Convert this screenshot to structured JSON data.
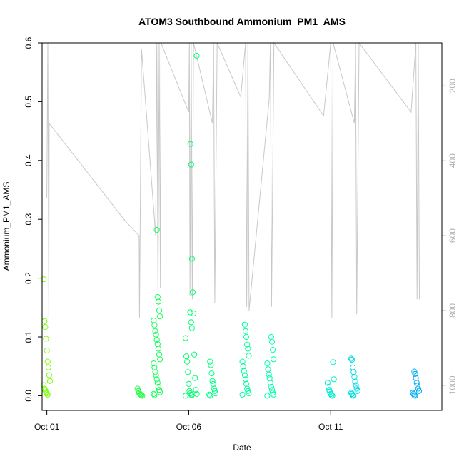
{
  "chart_data": {
    "type": "scatter",
    "title": "ATOM3 Southbound Ammonium_PM1_AMS",
    "xlabel": "Date",
    "ylabel": "Ammonium_PM1_AMS",
    "x_domain": [
      "2017-09-30T20:00",
      "2017-10-14T22:00"
    ],
    "ylim": [
      -0.025,
      0.6
    ],
    "y_ticks": [
      0.0,
      0.1,
      0.2,
      0.3,
      0.4,
      0.5,
      0.6
    ],
    "x_ticks": [
      {
        "date": "2017-10-01T00:00",
        "label": "Oct 01"
      },
      {
        "date": "2017-10-06T00:00",
        "label": "Oct 06"
      },
      {
        "date": "2017-10-11T00:00",
        "label": "Oct 11"
      }
    ],
    "right_axis": {
      "color": "#b3b3b3",
      "reversed": true,
      "range": [
        85,
        1067
      ],
      "ticks": [
        200,
        400,
        600,
        800,
        1000
      ]
    },
    "grid": false,
    "legend": "none",
    "point_color_gradient": [
      "#7fff00",
      "#00ff66",
      "#00ffcc",
      "#0096ff"
    ],
    "series": [
      {
        "role": "ammonium points",
        "groups": [
          {
            "date": "2017-10-01T00:00",
            "values": [
              0.198,
              0.127,
              0.117,
              0.097,
              0.077,
              0.058,
              0.048,
              0.035,
              0.025,
              0.018,
              0.012,
              0.009,
              0.006,
              0.004,
              0.002
            ]
          },
          {
            "date": "2017-10-04T06:00",
            "values": [
              0.012,
              0.008,
              0.005,
              0.003,
              0.002,
              0.001,
              0.0
            ]
          },
          {
            "date": "2017-10-04T21:00",
            "values": [
              0.282,
              0.168,
              0.16,
              0.145,
              0.135,
              0.128,
              0.12,
              0.11,
              0.104,
              0.095,
              0.088,
              0.08,
              0.07,
              0.062,
              0.055,
              0.048,
              0.04,
              0.035,
              0.028,
              0.022,
              0.015,
              0.01,
              0.006,
              0.003,
              0.001
            ]
          },
          {
            "date": "2017-10-06T00:00",
            "values": [
              0.142,
              0.125,
              0.115,
              0.098,
              0.067,
              0.058,
              0.04,
              0.02,
              0.008,
              0.004,
              0.002,
              0.001,
              0.0
            ]
          },
          {
            "date": "2017-10-06T04:00",
            "values": [
              0.578,
              0.428,
              0.393,
              0.233,
              0.176,
              0.14,
              0.07,
              0.03,
              0.01,
              0.003
            ]
          },
          {
            "date": "2017-10-06T20:00",
            "values": [
              0.058,
              0.052,
              0.038,
              0.025,
              0.02,
              0.012,
              0.008,
              0.004,
              0.002,
              0.0
            ]
          },
          {
            "date": "2017-10-08T00:00",
            "values": [
              0.121,
              0.11,
              0.1,
              0.087,
              0.08,
              0.068,
              0.058,
              0.05,
              0.042,
              0.035,
              0.028,
              0.02,
              0.012,
              0.008,
              0.004,
              0.002
            ]
          },
          {
            "date": "2017-10-08T21:00",
            "values": [
              0.1,
              0.092,
              0.078,
              0.062,
              0.055,
              0.045,
              0.036,
              0.03,
              0.022,
              0.015,
              0.01,
              0.005,
              0.002,
              0.0
            ]
          },
          {
            "date": "2017-10-11T00:00",
            "values": [
              0.057,
              0.028,
              0.022,
              0.015,
              0.01,
              0.006,
              0.003,
              0.001,
              0.0
            ]
          },
          {
            "date": "2017-10-11T20:00",
            "values": [
              0.063,
              0.061,
              0.048,
              0.04,
              0.032,
              0.024,
              0.018,
              0.012,
              0.008,
              0.005,
              0.003,
              0.001,
              0.0
            ]
          },
          {
            "date": "2017-10-14T00:00",
            "values": [
              0.041,
              0.037,
              0.03,
              0.022,
              0.017,
              0.012,
              0.008,
              0.005,
              0.003,
              0.001,
              0.0
            ]
          }
        ]
      },
      {
        "role": "altitude profile (right axis)",
        "color": "#c8c8c8",
        "points": [
          [
            "2017-10-01T00:00",
            500
          ],
          [
            "2017-10-01T00:50",
            85
          ],
          [
            "2017-10-01T01:40",
            820
          ],
          [
            "2017-10-01T02:00",
            300
          ],
          [
            "2017-10-03T18:00",
            560
          ],
          [
            "2017-10-04T06:00",
            600
          ],
          [
            "2017-10-04T06:20",
            820
          ],
          [
            "2017-10-04T07:00",
            540
          ],
          [
            "2017-10-04T08:00",
            100
          ],
          [
            "2017-10-04T20:00",
            600
          ],
          [
            "2017-10-04T21:00",
            85
          ],
          [
            "2017-10-04T22:00",
            770
          ],
          [
            "2017-10-04T23:00",
            85
          ],
          [
            "2017-10-05T00:00",
            740
          ],
          [
            "2017-10-05T00:30",
            85
          ],
          [
            "2017-10-06T00:00",
            270
          ],
          [
            "2017-10-06T00:30",
            85
          ],
          [
            "2017-10-06T01:00",
            760
          ],
          [
            "2017-10-06T02:00",
            85
          ],
          [
            "2017-10-06T03:00",
            770
          ],
          [
            "2017-10-06T04:00",
            85
          ],
          [
            "2017-10-06T20:00",
            300
          ],
          [
            "2017-10-06T21:00",
            85
          ],
          [
            "2017-10-06T22:00",
            780
          ],
          [
            "2017-10-07T00:00",
            85
          ],
          [
            "2017-10-07T20:00",
            230
          ],
          [
            "2017-10-08T00:00",
            85
          ],
          [
            "2017-10-08T01:00",
            790
          ],
          [
            "2017-10-08T02:00",
            85
          ],
          [
            "2017-10-08T03:00",
            800
          ],
          [
            "2017-10-08T20:00",
            235
          ],
          [
            "2017-10-08T21:00",
            85
          ],
          [
            "2017-10-08T22:00",
            790
          ],
          [
            "2017-10-09T00:00",
            85
          ],
          [
            "2017-10-10T18:00",
            280
          ],
          [
            "2017-10-11T00:00",
            85
          ],
          [
            "2017-10-11T01:00",
            820
          ],
          [
            "2017-10-11T02:00",
            85
          ],
          [
            "2017-10-11T20:00",
            300
          ],
          [
            "2017-10-11T21:00",
            85
          ],
          [
            "2017-10-11T22:00",
            810
          ],
          [
            "2017-10-12T00:00",
            85
          ],
          [
            "2017-10-13T20:00",
            270
          ],
          [
            "2017-10-14T00:00",
            85
          ],
          [
            "2017-10-14T01:00",
            770
          ],
          [
            "2017-10-14T02:00",
            85
          ],
          [
            "2017-10-14T03:00",
            770
          ]
        ]
      }
    ]
  }
}
